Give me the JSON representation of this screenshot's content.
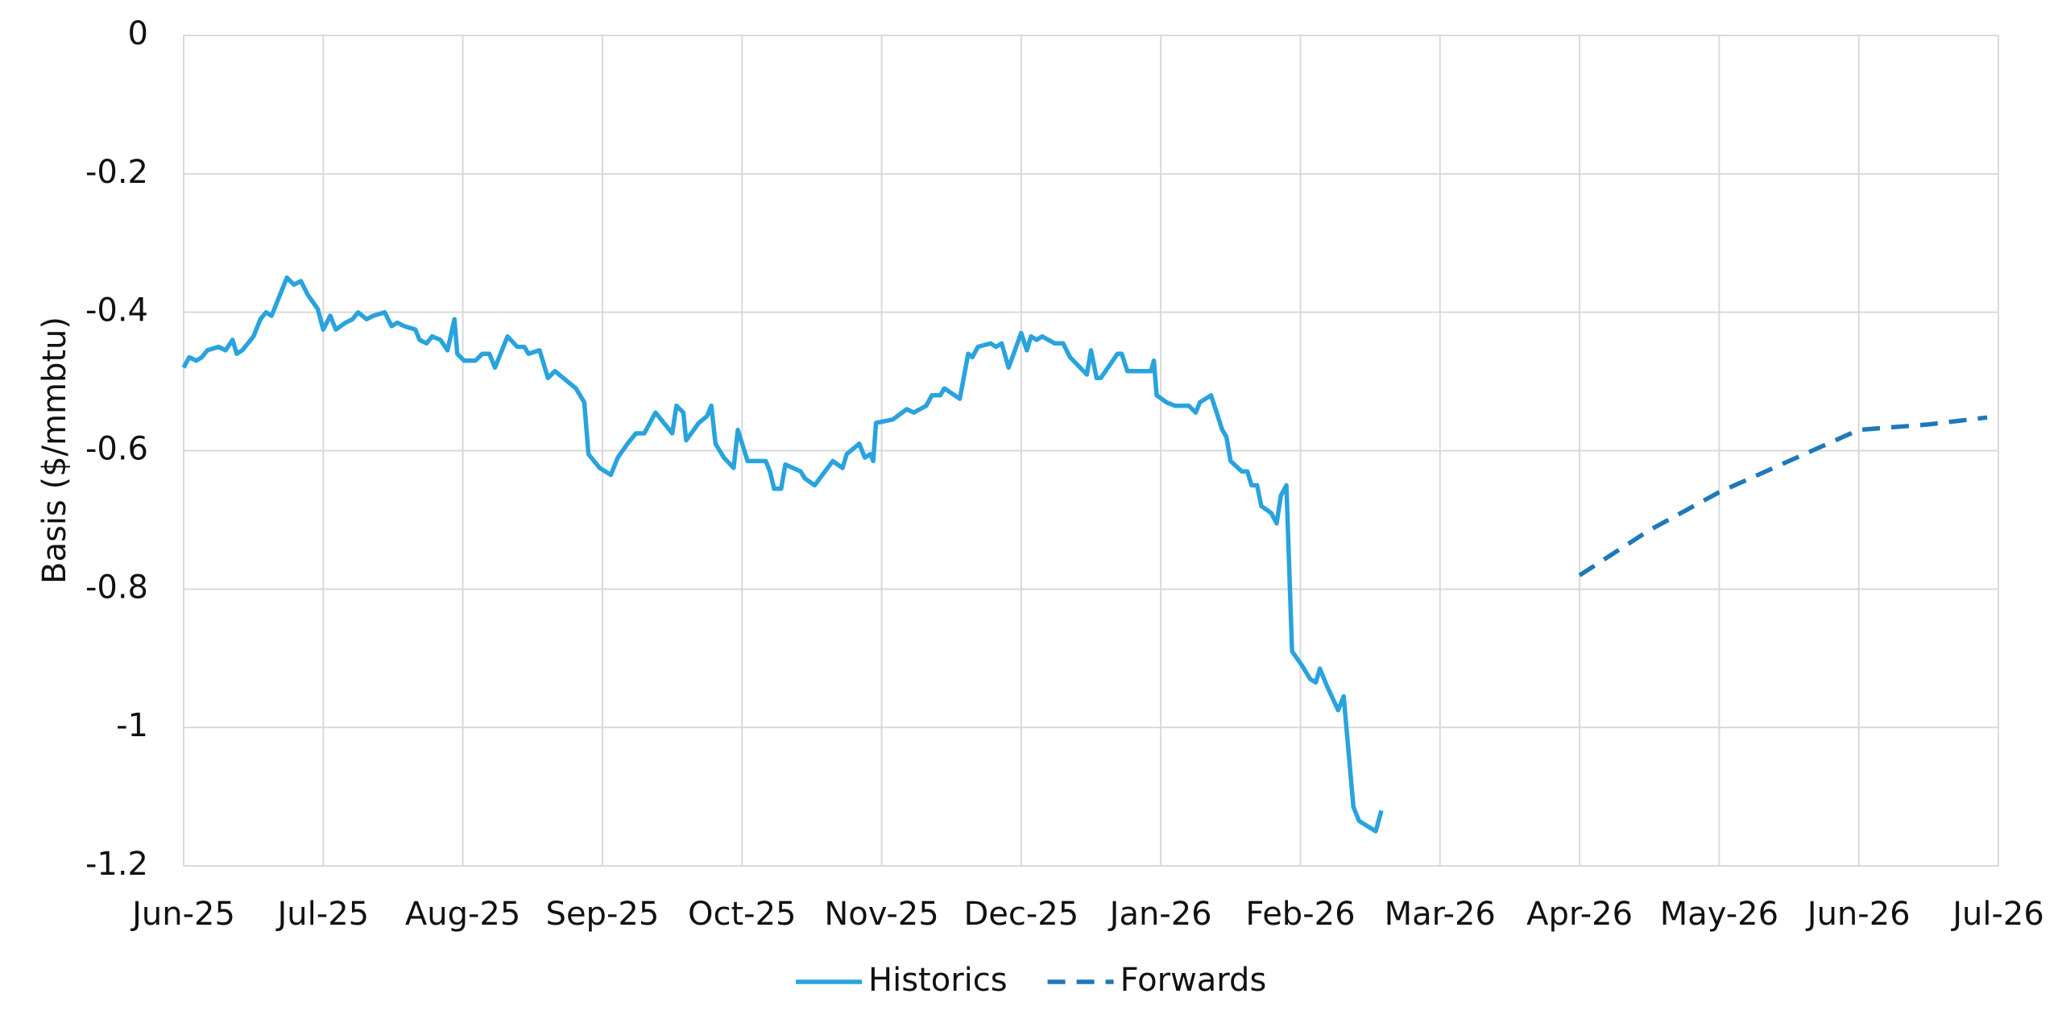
{
  "chart_data": {
    "type": "line",
    "y_label": "Basis ($/mmbtu)",
    "xlim": [
      0,
      13
    ],
    "xticks": [
      {
        "value": 0,
        "label": "Jun-25"
      },
      {
        "value": 1,
        "label": "Jul-25"
      },
      {
        "value": 2,
        "label": "Aug-25"
      },
      {
        "value": 3,
        "label": "Sep-25"
      },
      {
        "value": 4,
        "label": "Oct-25"
      },
      {
        "value": 5,
        "label": "Nov-25"
      },
      {
        "value": 6,
        "label": "Dec-25"
      },
      {
        "value": 7,
        "label": "Jan-26"
      },
      {
        "value": 8,
        "label": "Feb-26"
      },
      {
        "value": 9,
        "label": "Mar-26"
      },
      {
        "value": 10,
        "label": "Apr-26"
      },
      {
        "value": 11,
        "label": "May-26"
      },
      {
        "value": 12,
        "label": "Jun-26"
      },
      {
        "value": 13,
        "label": "Jul-26"
      }
    ],
    "ylim": [
      -1.2,
      0
    ],
    "yticks": [
      -1.2,
      -1,
      -0.8,
      -0.6,
      -0.4,
      -0.2,
      0
    ],
    "grid": true,
    "legend": "bottom",
    "series": [
      {
        "name": "Historics",
        "color": "#29a3dd",
        "dash": false,
        "x": [
          0.0,
          0.04,
          0.09,
          0.13,
          0.17,
          0.25,
          0.3,
          0.35,
          0.38,
          0.42,
          0.5,
          0.55,
          0.59,
          0.63,
          0.68,
          0.74,
          0.79,
          0.84,
          0.89,
          0.96,
          1.0,
          1.05,
          1.09,
          1.16,
          1.21,
          1.25,
          1.31,
          1.36,
          1.44,
          1.49,
          1.53,
          1.58,
          1.66,
          1.69,
          1.74,
          1.78,
          1.84,
          1.89,
          1.94,
          1.96,
          2.01,
          2.09,
          2.14,
          2.19,
          2.23,
          2.32,
          2.39,
          2.44,
          2.47,
          2.55,
          2.61,
          2.66,
          2.81,
          2.87,
          2.9,
          2.98,
          3.06,
          3.11,
          3.18,
          3.24,
          3.3,
          3.38,
          3.5,
          3.53,
          3.58,
          3.6,
          3.69,
          3.75,
          3.78,
          3.81,
          3.87,
          3.94,
          3.97,
          4.04,
          4.17,
          4.2,
          4.23,
          4.28,
          4.31,
          4.42,
          4.45,
          4.52,
          4.65,
          4.72,
          4.75,
          4.84,
          4.88,
          4.92,
          4.94,
          4.96,
          5.08,
          5.18,
          5.23,
          5.32,
          5.36,
          5.42,
          5.45,
          5.56,
          5.62,
          5.65,
          5.69,
          5.78,
          5.82,
          5.86,
          5.91,
          6.0,
          6.04,
          6.07,
          6.11,
          6.15,
          6.24,
          6.3,
          6.35,
          6.47,
          6.5,
          6.54,
          6.57,
          6.69,
          6.72,
          6.76,
          6.93,
          6.95,
          6.97,
          7.04,
          7.1,
          7.2,
          7.25,
          7.28,
          7.36,
          7.4,
          7.44,
          7.47,
          7.5,
          7.58,
          7.62,
          7.65,
          7.69,
          7.72,
          7.79,
          7.83,
          7.86,
          7.9,
          7.94,
          8.01,
          8.07,
          8.11,
          8.14,
          8.19,
          8.27,
          8.31,
          8.38,
          8.42,
          8.54,
          8.58
        ],
        "values": [
          -0.48,
          -0.465,
          -0.47,
          -0.465,
          -0.455,
          -0.45,
          -0.455,
          -0.44,
          -0.46,
          -0.455,
          -0.435,
          -0.41,
          -0.4,
          -0.405,
          -0.38,
          -0.35,
          -0.36,
          -0.355,
          -0.375,
          -0.395,
          -0.425,
          -0.405,
          -0.425,
          -0.415,
          -0.41,
          -0.4,
          -0.41,
          -0.405,
          -0.4,
          -0.42,
          -0.415,
          -0.42,
          -0.425,
          -0.44,
          -0.445,
          -0.435,
          -0.44,
          -0.455,
          -0.41,
          -0.46,
          -0.47,
          -0.47,
          -0.46,
          -0.46,
          -0.48,
          -0.435,
          -0.45,
          -0.45,
          -0.46,
          -0.455,
          -0.495,
          -0.485,
          -0.51,
          -0.53,
          -0.605,
          -0.625,
          -0.635,
          -0.61,
          -0.59,
          -0.575,
          -0.575,
          -0.545,
          -0.575,
          -0.535,
          -0.545,
          -0.585,
          -0.56,
          -0.55,
          -0.535,
          -0.59,
          -0.61,
          -0.625,
          -0.57,
          -0.615,
          -0.615,
          -0.63,
          -0.655,
          -0.655,
          -0.62,
          -0.63,
          -0.64,
          -0.65,
          -0.615,
          -0.625,
          -0.605,
          -0.59,
          -0.61,
          -0.605,
          -0.615,
          -0.56,
          -0.555,
          -0.54,
          -0.545,
          -0.535,
          -0.52,
          -0.52,
          -0.51,
          -0.525,
          -0.46,
          -0.465,
          -0.45,
          -0.445,
          -0.45,
          -0.445,
          -0.48,
          -0.43,
          -0.455,
          -0.435,
          -0.44,
          -0.435,
          -0.445,
          -0.445,
          -0.465,
          -0.49,
          -0.455,
          -0.495,
          -0.495,
          -0.46,
          -0.46,
          -0.485,
          -0.485,
          -0.47,
          -0.52,
          -0.53,
          -0.535,
          -0.535,
          -0.545,
          -0.53,
          -0.52,
          -0.545,
          -0.57,
          -0.58,
          -0.615,
          -0.63,
          -0.63,
          -0.65,
          -0.65,
          -0.68,
          -0.69,
          -0.705,
          -0.665,
          -0.65,
          -0.89,
          -0.91,
          -0.93,
          -0.935,
          -0.915,
          -0.94,
          -0.975,
          -0.955,
          -1.115,
          -1.135,
          -1.15,
          -1.12
        ]
      },
      {
        "name": "Forwards",
        "color": "#1f78b8",
        "dash": true,
        "x": [
          10.0,
          10.5,
          11.0,
          11.5,
          12.0,
          12.5,
          12.92
        ],
        "values": [
          -0.78,
          -0.715,
          -0.66,
          -0.615,
          -0.57,
          -0.562,
          -0.552
        ]
      }
    ]
  }
}
